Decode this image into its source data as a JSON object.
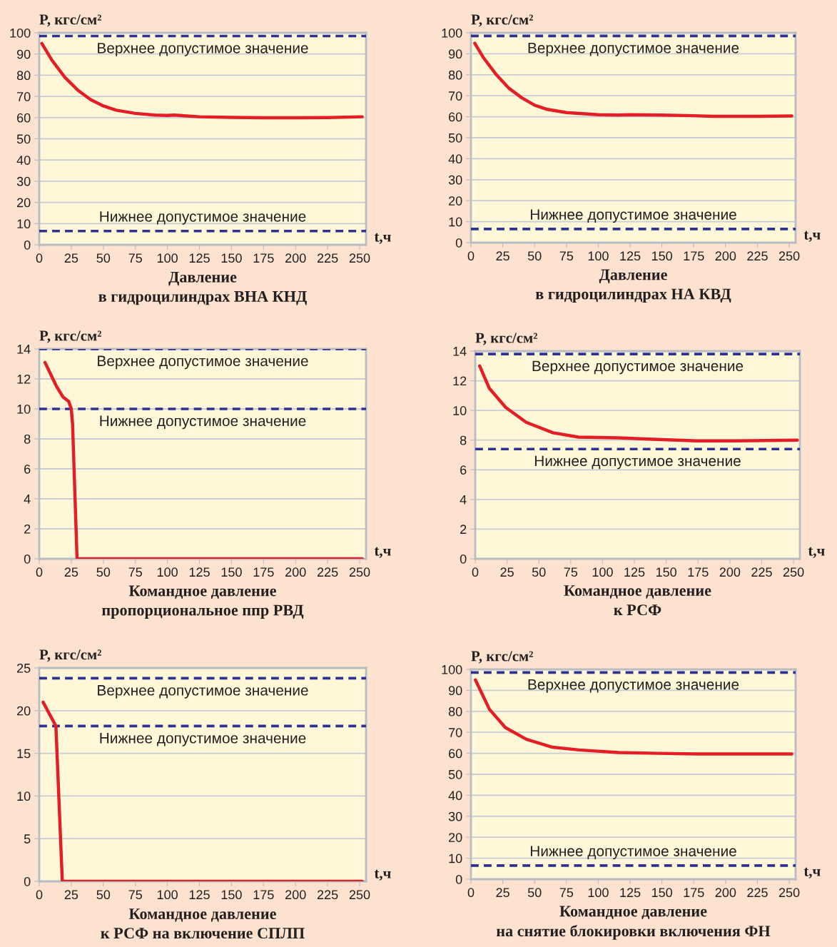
{
  "chart_data": [
    {
      "type": "line",
      "title": "Давление\nв гидроцилиндрах ВНА КНД",
      "xlabel": "t,ч",
      "ylabel": "P, кгс/см²",
      "xlim": [
        0,
        255
      ],
      "ylim": [
        0,
        100
      ],
      "xticks": [
        0,
        25,
        50,
        75,
        100,
        125,
        150,
        175,
        200,
        225,
        250
      ],
      "yticks": [
        0,
        10,
        20,
        30,
        40,
        50,
        60,
        70,
        80,
        90,
        100
      ],
      "grid": "y",
      "series": [
        {
          "color": "#e31e24",
          "x": [
            2,
            10,
            20,
            30,
            40,
            50,
            60,
            75,
            90,
            100,
            105,
            115,
            125,
            150,
            175,
            200,
            225,
            252
          ],
          "values": [
            95,
            87,
            79,
            73,
            68.5,
            65.5,
            63.5,
            62,
            61.2,
            61,
            61.2,
            60.8,
            60.4,
            60.1,
            59.9,
            59.9,
            60,
            60.4
          ]
        }
      ],
      "ref_lines": [
        {
          "axis": "y",
          "value": 98.5,
          "label": "Верхнее допустимое значение",
          "color": "#2e3192",
          "line_style": "dashed"
        },
        {
          "axis": "y",
          "value": 6.5,
          "label": "Нижнее допустимое значение",
          "color": "#2e3192",
          "line_style": "dashed"
        }
      ]
    },
    {
      "type": "line",
      "title": "Давление\nв гидроцилиндрах НА КВД",
      "xlabel": "t,ч",
      "ylabel": "P, кгс/см²",
      "xlim": [
        0,
        255
      ],
      "ylim": [
        0,
        100
      ],
      "xticks": [
        0,
        25,
        50,
        75,
        100,
        125,
        150,
        175,
        200,
        225,
        250
      ],
      "yticks": [
        0,
        10,
        20,
        30,
        40,
        50,
        60,
        70,
        80,
        90,
        100
      ],
      "grid": "y",
      "series": [
        {
          "color": "#e31e24",
          "x": [
            3,
            10,
            20,
            30,
            40,
            50,
            60,
            75,
            100,
            115,
            125,
            150,
            175,
            190,
            225,
            252
          ],
          "values": [
            95,
            88,
            80,
            73.5,
            69,
            65.5,
            63.5,
            62,
            61,
            60.8,
            61,
            60.8,
            60.5,
            60.2,
            60.2,
            60.4
          ]
        }
      ],
      "ref_lines": [
        {
          "axis": "y",
          "value": 98.5,
          "label": "Верхнее допустимое значение",
          "color": "#2e3192",
          "line_style": "dashed"
        },
        {
          "axis": "y",
          "value": 6.5,
          "label": "Нижнее допустимое значение",
          "color": "#2e3192",
          "line_style": "dashed"
        }
      ]
    },
    {
      "type": "line",
      "title": "Командное давление\nпропорциональное ппр РВД",
      "xlabel": "t,ч",
      "ylabel": "P, кгс/см²",
      "xlim": [
        0,
        255
      ],
      "ylim": [
        0,
        14
      ],
      "xticks": [
        0,
        25,
        50,
        75,
        100,
        125,
        150,
        175,
        200,
        225,
        250
      ],
      "yticks": [
        0,
        2,
        4,
        6,
        8,
        10,
        12,
        14
      ],
      "grid": "y",
      "series": [
        {
          "color": "#e31e24",
          "x": [
            4.5,
            9,
            13.5,
            18.5,
            23,
            25,
            26,
            29.5,
            252
          ],
          "values": [
            13.1,
            12.3,
            11.5,
            10.8,
            10.5,
            10,
            9,
            0,
            0
          ]
        }
      ],
      "ref_lines": [
        {
          "axis": "y",
          "value": 14,
          "label": "Верхнее допустимое значение",
          "color": "#2e3192",
          "line_style": "dashed"
        },
        {
          "axis": "y",
          "value": 10,
          "label": "Нижнее допустимое значение",
          "color": "#2e3192",
          "line_style": "dashed"
        }
      ]
    },
    {
      "type": "line",
      "title": "Командное давление\nк РСФ",
      "xlabel": "t,ч",
      "ylabel": "P, кгс/см²",
      "xlim": [
        0,
        255
      ],
      "ylim": [
        0,
        14
      ],
      "xticks": [
        0,
        25,
        50,
        75,
        100,
        125,
        150,
        175,
        200,
        225,
        250
      ],
      "yticks": [
        0,
        2,
        4,
        6,
        8,
        10,
        12,
        14
      ],
      "grid": "y",
      "series": [
        {
          "color": "#e31e24",
          "x": [
            3.5,
            11,
            24,
            40,
            61,
            81,
            112,
            143,
            174,
            205,
            253
          ],
          "values": [
            13,
            11.5,
            10.2,
            9.2,
            8.5,
            8.2,
            8.15,
            8.05,
            7.95,
            7.95,
            8
          ]
        }
      ],
      "ref_lines": [
        {
          "axis": "y",
          "value": 13.8,
          "label": "Верхнее допустимое значение",
          "color": "#2e3192",
          "line_style": "dashed"
        },
        {
          "axis": "y",
          "value": 7.4,
          "label": "Нижнее допустимое значение",
          "color": "#2e3192",
          "line_style": "dashed"
        }
      ]
    },
    {
      "type": "line",
      "title": "Командное давление\nк РСФ на включение СПЛП",
      "xlabel": "t,ч",
      "ylabel": "P, кгс/см²",
      "xlim": [
        0,
        255
      ],
      "ylim": [
        0,
        25
      ],
      "xticks": [
        0,
        25,
        50,
        75,
        100,
        125,
        150,
        175,
        200,
        225,
        250
      ],
      "yticks": [
        0,
        5,
        10,
        15,
        20,
        25
      ],
      "grid": "y",
      "series": [
        {
          "color": "#e31e24",
          "x": [
            3,
            13,
            18,
            252
          ],
          "values": [
            21,
            18.2,
            0,
            0
          ]
        }
      ],
      "ref_lines": [
        {
          "axis": "y",
          "value": 23.8,
          "label": "Верхнее допустимое значение",
          "color": "#2e3192",
          "line_style": "dashed"
        },
        {
          "axis": "y",
          "value": 18.2,
          "label": "Нижнее допустимое значение",
          "color": "#2e3192",
          "line_style": "dashed"
        }
      ]
    },
    {
      "type": "line",
      "title": "Командное давление\nна снятие блокировки включения ФН",
      "xlabel": "t,ч",
      "ylabel": "P, кгс/см²",
      "xlim": [
        0,
        255
      ],
      "ylim": [
        0,
        100
      ],
      "xticks": [
        0,
        25,
        50,
        75,
        100,
        125,
        150,
        175,
        200,
        225,
        250
      ],
      "yticks": [
        0,
        10,
        20,
        30,
        40,
        50,
        60,
        70,
        80,
        90,
        100
      ],
      "grid": "y",
      "series": [
        {
          "color": "#e31e24",
          "x": [
            3.5,
            14.5,
            27,
            43.5,
            64,
            85,
            116,
            147,
            178,
            252
          ],
          "values": [
            95,
            81,
            72.3,
            66.7,
            62.9,
            61.6,
            60.4,
            60,
            59.7,
            59.7
          ]
        }
      ],
      "ref_lines": [
        {
          "axis": "y",
          "value": 98.5,
          "label": "Верхнее допустимое значение",
          "color": "#2e3192",
          "line_style": "dashed"
        },
        {
          "axis": "y",
          "value": 6.5,
          "label": "Нижнее допустимое значение",
          "color": "#2e3192",
          "line_style": "dashed"
        }
      ]
    }
  ]
}
